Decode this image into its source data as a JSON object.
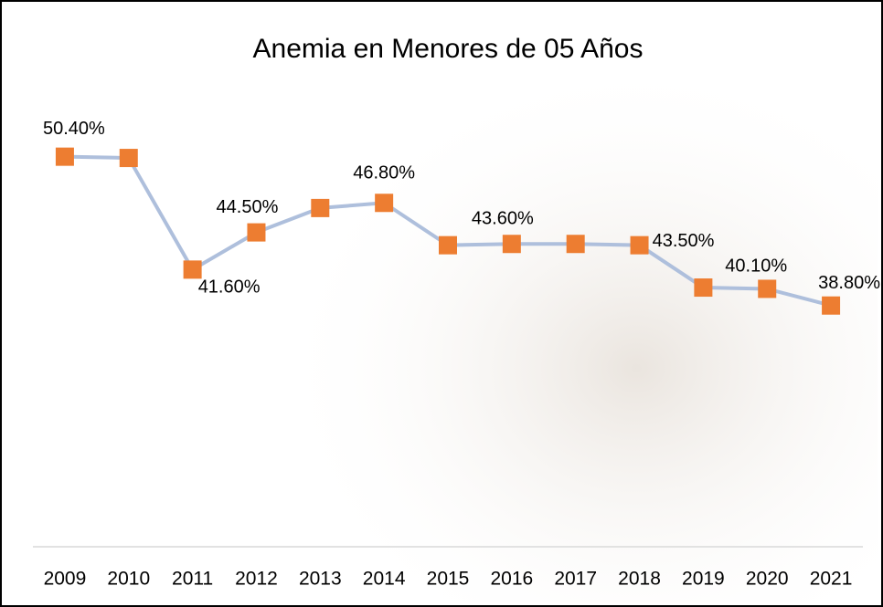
{
  "chart_data": {
    "type": "line",
    "title": "Anemia en Menores de 05 Años",
    "categories": [
      "2009",
      "2010",
      "2011",
      "2012",
      "2013",
      "2014",
      "2015",
      "2016",
      "2017",
      "2018",
      "2019",
      "2020",
      "2021"
    ],
    "series": [
      {
        "color": "#ed7d31",
        "line_color": "#aebfdc",
        "values": [
          50.4,
          50.3,
          41.6,
          44.5,
          46.4,
          46.8,
          43.5,
          43.6,
          43.6,
          43.5,
          40.2,
          40.1,
          38.8
        ],
        "value_labels": [
          "50.40%",
          null,
          "41.60%",
          "44.50%",
          null,
          "46.80%",
          null,
          "43.60%",
          null,
          "43.50%",
          null,
          "40.10%",
          "38.80%"
        ]
      }
    ],
    "ylim": [
      20,
      55
    ]
  }
}
